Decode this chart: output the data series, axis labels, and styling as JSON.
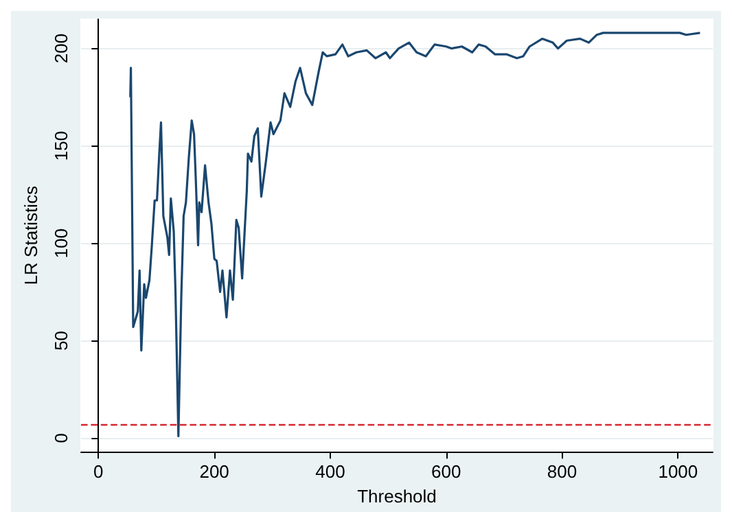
{
  "chart_data": {
    "type": "line",
    "xlabel": "Threshold",
    "ylabel": "LR Statistics",
    "xlim": [
      -30,
      1060
    ],
    "xticks": [
      0,
      200,
      400,
      600,
      800,
      1000
    ],
    "ylim": [
      -7,
      215
    ],
    "yticks": [
      0,
      50,
      100,
      150,
      200
    ],
    "grid": "y",
    "series": [
      {
        "color": "#1a476f",
        "x": [
          55,
          56,
          60,
          68,
          71,
          74,
          79,
          82,
          88,
          92,
          97,
          101,
          105,
          108,
          112,
          119,
          122,
          125,
          130,
          133,
          138,
          143,
          147,
          151,
          156,
          161,
          165,
          168,
          172,
          174,
          178,
          184,
          190,
          195,
          200,
          204,
          210,
          214,
          221,
          227,
          232,
          238,
          242,
          248,
          256,
          258,
          264,
          269,
          275,
          281,
          289,
          297,
          302,
          314,
          321,
          331,
          340,
          348,
          358,
          369,
          380,
          387,
          394,
          409,
          421,
          431,
          445,
          463,
          478,
          496,
          503,
          518,
          536,
          549,
          565,
          580,
          600,
          609,
          627,
          645,
          656,
          668,
          684,
          704,
          722,
          733,
          744,
          766,
          784,
          793,
          808,
          831,
          846,
          860,
          871,
          944,
          1003,
          1014,
          1038
        ],
        "values": [
          175,
          190,
          57,
          65,
          86,
          45,
          79,
          72,
          81,
          98,
          122,
          122,
          146,
          162,
          114,
          103,
          94,
          123,
          106,
          75,
          1,
          73,
          114,
          121,
          144,
          163,
          156,
          133,
          99,
          121,
          116,
          140,
          121,
          110,
          92,
          91,
          75,
          86,
          62,
          86,
          71,
          112,
          108,
          82,
          127,
          146,
          142,
          155,
          159,
          124,
          142,
          162,
          156,
          163,
          177,
          170,
          183,
          190,
          177,
          171,
          188,
          198,
          196,
          197,
          202,
          196,
          198,
          199,
          195,
          198,
          195,
          200,
          203,
          198,
          196,
          202,
          201,
          200,
          201,
          198,
          202,
          201,
          197,
          197,
          195,
          196,
          201,
          205,
          203,
          200,
          204,
          205,
          203,
          207,
          208,
          208,
          208,
          207,
          208
        ]
      }
    ],
    "ref_lines": [
      {
        "axis": "y",
        "value": 7,
        "color": "#d7262e",
        "line_style": "dashed"
      }
    ]
  }
}
